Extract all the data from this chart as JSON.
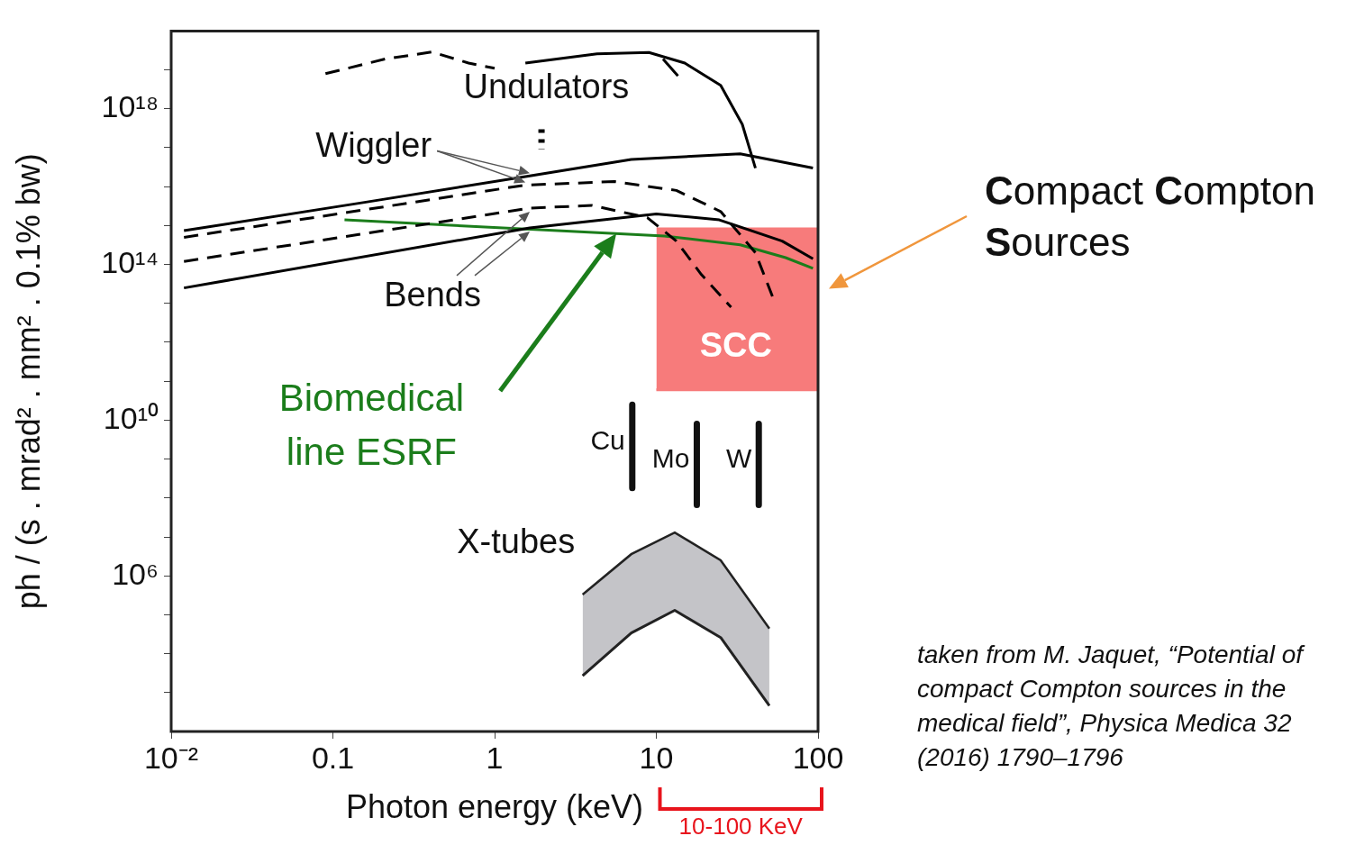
{
  "chart_data": {
    "type": "line",
    "log": "xy",
    "xlabel": "Photon energy (keV)",
    "ylabel": "ph / (s . mrad² . mm² . 0.1% bw)",
    "xlim": [
      0.01,
      100
    ],
    "xticks": [
      {
        "value": 0.01,
        "label": "10⁻²"
      },
      0.1,
      1,
      10,
      100
    ],
    "ylim": [
      100.0,
      1e+20
    ],
    "yticks": [
      {
        "value": 1000.0,
        "label": null
      },
      {
        "value": 10000.0,
        "label": null
      },
      {
        "value": 100000.0,
        "label": null
      },
      {
        "value": 1000000.0,
        "label": "10⁶"
      },
      {
        "value": 10000000.0,
        "label": null
      },
      {
        "value": 100000000.0,
        "label": null
      },
      {
        "value": 1000000000.0,
        "label": null
      },
      {
        "value": 10000000000.0,
        "label": "10¹⁰"
      },
      {
        "value": 100000000000.0,
        "label": null
      },
      {
        "value": 1000000000000.0,
        "label": null
      },
      {
        "value": 10000000000000.0,
        "label": null
      },
      {
        "value": 100000000000000.0,
        "label": "10¹⁴"
      },
      {
        "value": 1000000000000000.0,
        "label": null
      },
      {
        "value": 1e+16,
        "label": null
      },
      {
        "value": 1e+17,
        "label": null
      },
      {
        "value": 1e+18,
        "label": "10¹⁸"
      },
      {
        "value": 1e+19,
        "label": null
      }
    ],
    "series": [
      {
        "line_style": "dashed",
        "color": "#000000",
        "x": [
          0.09,
          0.21,
          0.41,
          0.69,
          1.0
        ],
        "values": [
          8e+18,
          1.9e+19,
          2.9e+19,
          1.5e+19,
          1.1e+19
        ]
      },
      {
        "line_style": "solid",
        "color": "#000000",
        "x": [
          1.55,
          4.3,
          9,
          15,
          25,
          34,
          41
        ],
        "values": [
          1.5e+19,
          2.6e+19,
          2.8e+19,
          1.5e+19,
          4e+18,
          4e+17,
          3e+16
        ]
      },
      {
        "line_style": "solid",
        "color": "#000000",
        "x": [
          11,
          13.6
        ],
        "values": [
          1.9e+19,
          7e+18
        ]
      },
      {
        "line_style": "dotted",
        "color": "#000000",
        "x": [
          1.95,
          1.95
        ],
        "values": [
          3e+17,
          9e+16
        ]
      },
      {
        "line_style": "solid",
        "color": "#000000",
        "x": [
          0.012,
          0.16,
          1.65,
          7,
          33,
          93
        ],
        "values": [
          740000000000000.0,
          4000000000000000.0,
          1.9e+16,
          5e+16,
          7e+16,
          3e+16
        ]
      },
      {
        "line_style": "dashed",
        "color": "#000000",
        "x": [
          0.012,
          0.125,
          1.55,
          5.5,
          13.3,
          25,
          41,
          53
        ],
        "values": [
          500000000000000.0,
          2200000000000000.0,
          1.1e+16,
          1.35e+16,
          8000000000000000.0,
          2300000000000000.0,
          200000000000000.0,
          13000000000000.0
        ]
      },
      {
        "line_style": "dashed",
        "color": "#000000",
        "x": [
          0.012,
          1.65,
          4,
          8.8,
          13.3,
          19,
          29
        ],
        "values": [
          120000000000000.0,
          2800000000000000.0,
          3300000000000000.0,
          1600000000000000.0,
          400000000000000.0,
          55000000000000.0,
          8000000000000.0
        ]
      },
      {
        "line_style": "solid",
        "color": "#000000",
        "x": [
          0.012,
          1.65,
          10,
          24.5,
          60,
          93
        ],
        "values": [
          25000000000000.0,
          870000000000000.0,
          2000000000000000.0,
          1400000000000000.0,
          400000000000000.0,
          140000000000000.0
        ]
      },
      {
        "line_style": "solid",
        "name": "Biomedical line ESRF",
        "color": "#1b7d1b",
        "x": [
          0.118,
          11.2,
          33,
          63,
          93
        ],
        "values": [
          1400000000000000.0,
          540000000000000.0,
          320000000000000.0,
          150000000000000.0,
          80000000000000.0
        ]
      },
      {
        "line_style": "solid",
        "name": "Cu",
        "color": "#111111",
        "x": [
          7.1,
          7.1
        ],
        "values": [
          25000000000.0,
          180000000.0
        ]
      },
      {
        "line_style": "solid",
        "name": "Mo",
        "color": "#111111",
        "x": [
          17.8,
          17.8
        ],
        "values": [
          8000000000.0,
          66000000.0
        ]
      },
      {
        "line_style": "solid",
        "name": "W",
        "color": "#111111",
        "x": [
          43,
          43
        ],
        "values": [
          8000000000.0,
          66000000.0
        ]
      },
      {
        "line_style": "solid",
        "color": "#222222",
        "x": [
          3.5,
          7,
          13,
          25,
          50
        ],
        "values": [
          2700.0,
          34000.0,
          130000.0,
          26000.0,
          460.0
        ]
      },
      {
        "type": "area",
        "line_style": "solid",
        "color": "#c4c4c8",
        "x": [
          3.5,
          7,
          13,
          25,
          50
        ],
        "values": [
          330000.0,
          3600000.0,
          13000000.0,
          2500000.0,
          44000.0
        ]
      },
      {
        "line_style": "solid",
        "color": "#f77b7b",
        "x": [
          10,
          100
        ],
        "values": [
          60000000000.0,
          60000000000.0
        ]
      },
      {
        "type": "area",
        "color": "#f77b7b",
        "x": [
          10,
          100
        ],
        "values": [
          900000000000000.0,
          900000000000000.0
        ]
      }
    ],
    "annotations": [
      "Compact Compton Sources",
      "taken from M. Jaquet, “Potential of compact Compton sources in the medical field”, Physica Medica 32 (2016) 1790–1796",
      "Undulators",
      {
        "text": "Wiggler",
        "x": 1.65,
        "y": 1.9e+16
      },
      {
        "text": "Bends",
        "x": 1.65,
        "y": 2800000000000000.0
      },
      "X-tubes",
      "SCC",
      "10-100 KeV"
    ]
  }
}
